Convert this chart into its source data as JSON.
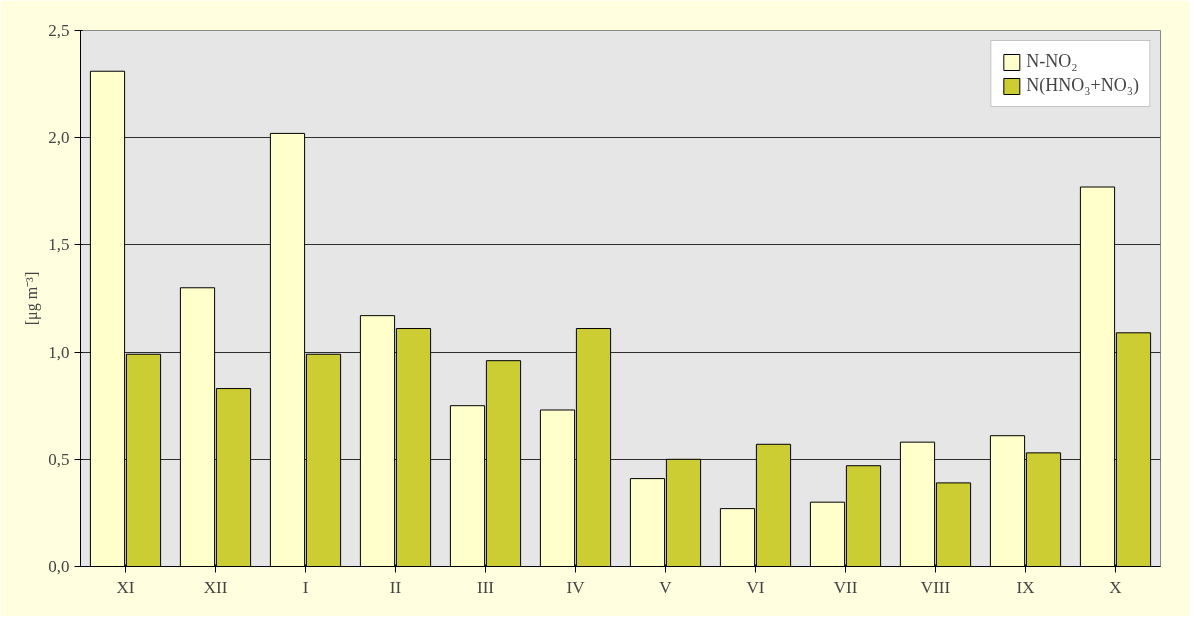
{
  "chart_data": {
    "type": "bar",
    "ylabel": "[μg m⁻³]",
    "categories": [
      "XI",
      "XII",
      "I",
      "II",
      "III",
      "IV",
      "V",
      "VI",
      "VII",
      "VIII",
      "IX",
      "X"
    ],
    "series": [
      {
        "name": "N-NO₂",
        "color": "#ffffcc",
        "values": [
          2.31,
          1.3,
          2.02,
          1.17,
          0.75,
          0.73,
          0.41,
          0.27,
          0.3,
          0.58,
          0.61,
          1.77
        ]
      },
      {
        "name": "N(HNO₃+NO₃)",
        "color": "#cccc33",
        "values": [
          0.99,
          0.83,
          0.99,
          1.11,
          0.96,
          1.11,
          0.5,
          0.57,
          0.47,
          0.39,
          0.53,
          1.09
        ]
      }
    ],
    "ylim": [
      0,
      2.5
    ],
    "yticks": [
      {
        "value": 0,
        "label": "0,0"
      },
      {
        "value": 0.5,
        "label": "0,5"
      },
      {
        "value": 1.0,
        "label": "1,0"
      },
      {
        "value": 1.5,
        "label": "1,5"
      },
      {
        "value": 2.0,
        "label": "2,0"
      },
      {
        "value": 2.5,
        "label": "2,5"
      }
    ],
    "grid": "y",
    "legend": "top right"
  }
}
